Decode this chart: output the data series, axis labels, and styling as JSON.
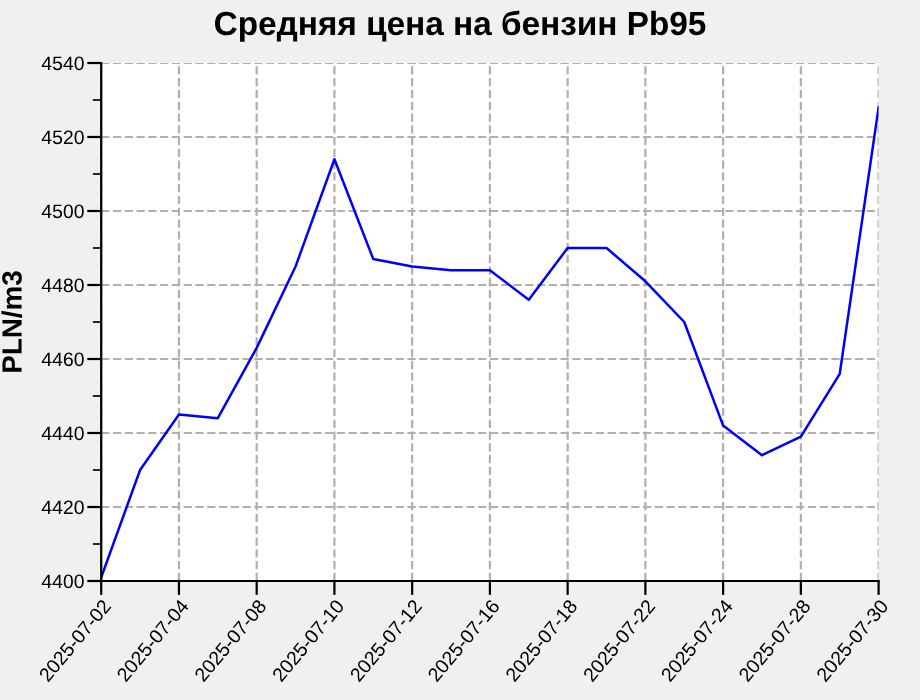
{
  "chart_data": {
    "type": "line",
    "title": "Средняя цена на бензин Pb95",
    "ylabel": "PLN/m3",
    "categories": [
      "2025-07-02",
      null,
      "2025-07-04",
      null,
      "2025-07-08",
      null,
      "2025-07-10",
      null,
      "2025-07-12",
      null,
      "2025-07-16",
      null,
      "2025-07-18",
      null,
      "2025-07-22",
      null,
      "2025-07-24",
      null,
      "2025-07-28",
      null,
      "2025-07-30"
    ],
    "series": [
      {
        "color": "#0000ff",
        "values": [
          4401,
          4430,
          4445,
          4444,
          4463,
          4485,
          4514,
          4487,
          4485,
          4484,
          4484,
          4476,
          4490,
          4490,
          4481,
          4470,
          4442,
          4434,
          4439,
          4456,
          4528
        ]
      }
    ],
    "ylim": [
      4400,
      4540
    ],
    "yticks": [
      4400,
      {
        "value": 4410,
        "label": null
      },
      4420,
      {
        "value": 4430,
        "label": null
      },
      4440,
      {
        "value": 4450,
        "label": null
      },
      4460,
      {
        "value": 4470,
        "label": null
      },
      4480,
      {
        "value": 4490,
        "label": null
      },
      4500,
      {
        "value": 4510,
        "label": null
      },
      4520,
      {
        "value": 4530,
        "label": null
      },
      4540
    ],
    "grid": true,
    "marker": "none",
    "line_style": "solid",
    "legend": false
  }
}
